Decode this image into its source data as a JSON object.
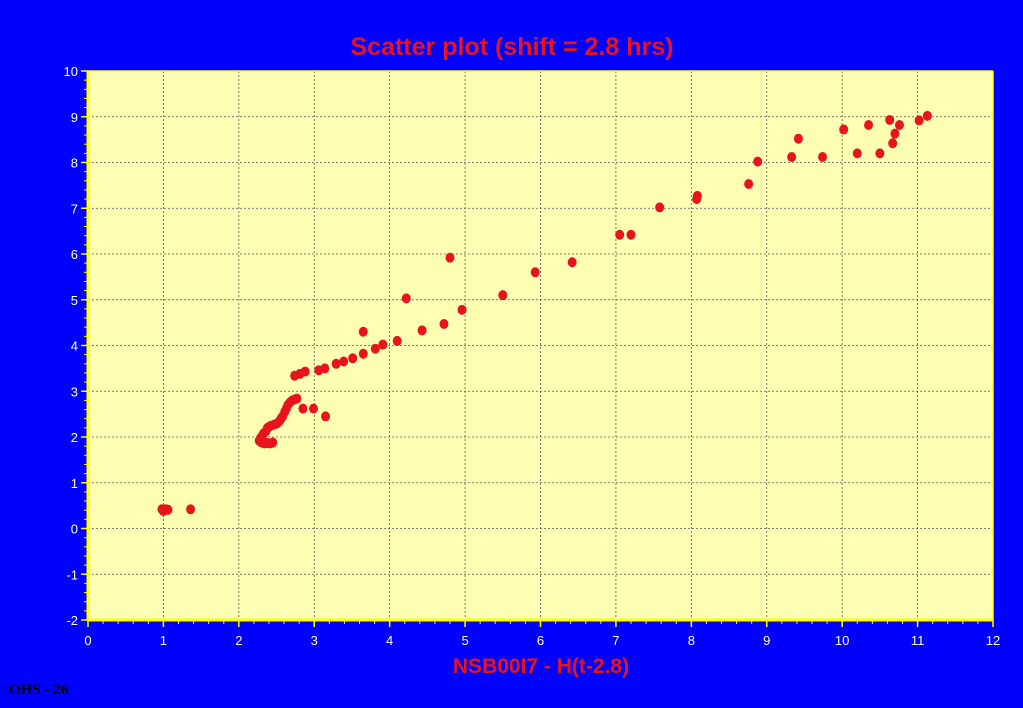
{
  "footer": "OHS - 26",
  "colors": {
    "background": "#0000FF",
    "plot_area": "#FFFFB4",
    "axis": "#FFFF00",
    "markers": "#E8141C",
    "title_text": "#E8141C",
    "tick_text": "#FFFFFF",
    "grid": "#555555"
  },
  "chart_data": {
    "type": "scatter",
    "title": "Scatter plot (shift = 2.8 hrs)",
    "xlabel": "NSB00I7 - H(t-2.8)",
    "ylabel": "",
    "xlim": [
      0,
      12
    ],
    "ylim": [
      -2,
      10
    ],
    "xticks": [
      "0",
      "1",
      "2",
      "3",
      "4",
      "5",
      "6",
      "7",
      "8",
      "9",
      "10",
      "11",
      "12"
    ],
    "yticks": [
      "10",
      "9",
      "8",
      "7",
      "6",
      "5",
      "4",
      "3",
      "2",
      "1",
      "0",
      "-1",
      "-2"
    ],
    "grid": true,
    "legend": "none",
    "series": [
      {
        "points": [
          [
            0.98,
            0.42
          ],
          [
            1.0,
            0.38
          ],
          [
            1.03,
            0.42
          ],
          [
            1.06,
            0.41
          ],
          [
            1.36,
            0.42
          ],
          [
            2.27,
            1.92
          ],
          [
            2.29,
            1.98
          ],
          [
            2.31,
            2.02
          ],
          [
            2.33,
            2.08
          ],
          [
            2.36,
            2.13
          ],
          [
            2.38,
            2.2
          ],
          [
            2.4,
            2.22
          ],
          [
            2.43,
            2.25
          ],
          [
            2.47,
            2.27
          ],
          [
            2.51,
            2.3
          ],
          [
            2.54,
            2.35
          ],
          [
            2.56,
            2.4
          ],
          [
            2.58,
            2.45
          ],
          [
            2.61,
            2.55
          ],
          [
            2.63,
            2.62
          ],
          [
            2.65,
            2.7
          ],
          [
            2.68,
            2.76
          ],
          [
            2.71,
            2.8
          ],
          [
            2.74,
            2.82
          ],
          [
            2.77,
            2.84
          ],
          [
            2.3,
            1.88
          ],
          [
            2.34,
            1.86
          ],
          [
            2.38,
            1.87
          ],
          [
            2.42,
            1.86
          ],
          [
            2.45,
            1.88
          ],
          [
            2.74,
            3.34
          ],
          [
            2.81,
            3.38
          ],
          [
            2.88,
            3.43
          ],
          [
            2.85,
            2.62
          ],
          [
            2.99,
            2.62
          ],
          [
            3.06,
            3.46
          ],
          [
            3.14,
            3.5
          ],
          [
            3.15,
            2.45
          ],
          [
            3.29,
            3.6
          ],
          [
            3.39,
            3.65
          ],
          [
            3.51,
            3.72
          ],
          [
            3.65,
            3.82
          ],
          [
            3.65,
            4.3
          ],
          [
            3.81,
            3.93
          ],
          [
            3.91,
            4.02
          ],
          [
            4.1,
            4.1
          ],
          [
            4.22,
            5.03
          ],
          [
            4.43,
            4.33
          ],
          [
            4.72,
            4.47
          ],
          [
            4.8,
            5.92
          ],
          [
            4.96,
            4.78
          ],
          [
            5.5,
            5.1
          ],
          [
            5.93,
            5.6
          ],
          [
            6.42,
            5.82
          ],
          [
            7.05,
            6.42
          ],
          [
            7.2,
            6.42
          ],
          [
            7.58,
            7.02
          ],
          [
            8.07,
            7.2
          ],
          [
            8.08,
            7.27
          ],
          [
            8.76,
            7.53
          ],
          [
            8.88,
            8.02
          ],
          [
            9.33,
            8.12
          ],
          [
            9.42,
            8.52
          ],
          [
            9.74,
            8.12
          ],
          [
            10.02,
            8.72
          ],
          [
            10.2,
            8.2
          ],
          [
            10.35,
            8.82
          ],
          [
            10.5,
            8.2
          ],
          [
            10.63,
            8.93
          ],
          [
            10.67,
            8.42
          ],
          [
            10.7,
            8.63
          ],
          [
            10.76,
            8.82
          ],
          [
            11.02,
            8.92
          ],
          [
            11.13,
            9.02
          ]
        ]
      }
    ]
  }
}
